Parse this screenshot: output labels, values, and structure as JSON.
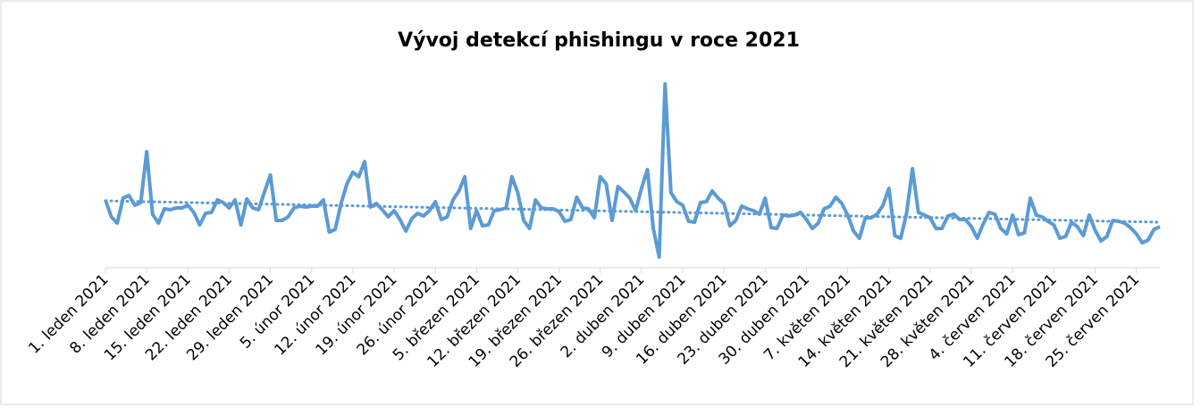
{
  "chart_data": {
    "type": "line",
    "title": "Vývoj detekcí phishingu v roce 2021",
    "categories": [
      "1. leden 2021",
      null,
      null,
      null,
      null,
      null,
      null,
      "8. leden 2021",
      null,
      null,
      null,
      null,
      null,
      null,
      "15. leden 2021",
      null,
      null,
      null,
      null,
      null,
      null,
      "22. leden 2021",
      null,
      null,
      null,
      null,
      null,
      null,
      "29. leden 2021",
      null,
      null,
      null,
      null,
      null,
      null,
      "5. únor 2021",
      null,
      null,
      null,
      null,
      null,
      null,
      "12. únor 2021",
      null,
      null,
      null,
      null,
      null,
      null,
      "19. únor 2021",
      null,
      null,
      null,
      null,
      null,
      null,
      "26. únor 2021",
      null,
      null,
      null,
      null,
      null,
      null,
      "5. březen 2021",
      null,
      null,
      null,
      null,
      null,
      null,
      "12. březen 2021",
      null,
      null,
      null,
      null,
      null,
      null,
      "19. březen 2021",
      null,
      null,
      null,
      null,
      null,
      null,
      "26. březen 2021",
      null,
      null,
      null,
      null,
      null,
      null,
      "2. duben 2021",
      null,
      null,
      null,
      null,
      null,
      null,
      "9. duben 2021",
      null,
      null,
      null,
      null,
      null,
      null,
      "16. duben 2021",
      null,
      null,
      null,
      null,
      null,
      null,
      "23. duben 2021",
      null,
      null,
      null,
      null,
      null,
      null,
      "30. duben 2021",
      null,
      null,
      null,
      null,
      null,
      null,
      "7. květen 2021",
      null,
      null,
      null,
      null,
      null,
      null,
      "14. květen 2021",
      null,
      null,
      null,
      null,
      null,
      null,
      "21. květen 2021",
      null,
      null,
      null,
      null,
      null,
      null,
      "28. květen 2021",
      null,
      null,
      null,
      null,
      null,
      null,
      "4. červen 2021",
      null,
      null,
      null,
      null,
      null,
      null,
      "11. červen 2021",
      null,
      null,
      null,
      null,
      null,
      null,
      "18. červen 2021",
      null,
      null,
      null,
      null,
      null,
      null,
      "25. červen 2021",
      null,
      null,
      null,
      null
    ],
    "series": [
      {
        "color": "#5b9bd5",
        "values": [
          76,
          57,
          50,
          78,
          81,
          70,
          73,
          130,
          60,
          50,
          66,
          65,
          67,
          67,
          70,
          62,
          48,
          61,
          62,
          76,
          73,
          67,
          76,
          48,
          77,
          67,
          65,
          85,
          104,
          53,
          53,
          57,
          67,
          69,
          68,
          69,
          69,
          76,
          40,
          43,
          72,
          94,
          107,
          102,
          119,
          68,
          72,
          65,
          57,
          64,
          54,
          41,
          55,
          61,
          58,
          64,
          74,
          54,
          57,
          76,
          86,
          102,
          44,
          64,
          47,
          48,
          64,
          65,
          67,
          102,
          84,
          53,
          44,
          76,
          67,
          66,
          66,
          63,
          52,
          54,
          79,
          67,
          66,
          56,
          102,
          94,
          53,
          91,
          85,
          78,
          64,
          89,
          110,
          44,
          12,
          206,
          84,
          74,
          70,
          52,
          51,
          73,
          74,
          86,
          78,
          72,
          47,
          53,
          69,
          66,
          64,
          60,
          78,
          45,
          44,
          59,
          58,
          59,
          62,
          54,
          44,
          50,
          66,
          69,
          79,
          72,
          59,
          41,
          33,
          56,
          56,
          60,
          70,
          89,
          36,
          33,
          61,
          111,
          62,
          59,
          56,
          44,
          44,
          58,
          60,
          54,
          54,
          46,
          33,
          49,
          62,
          60,
          44,
          38,
          59,
          37,
          39,
          78,
          59,
          57,
          52,
          48,
          33,
          35,
          51,
          46,
          36,
          59,
          42,
          30,
          35,
          53,
          52,
          50,
          45,
          38,
          28,
          31,
          43,
          46
        ]
      }
    ],
    "trendline": [
      75,
      51
    ],
    "ylim": [
      0,
      210
    ]
  }
}
